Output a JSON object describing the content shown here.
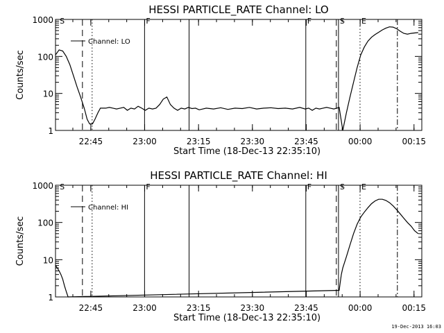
{
  "chart_data": [
    {
      "type": "line",
      "title": "HESSI PARTICLE_RATE Channel: LO",
      "xlabel": "Start Time (18-Dec-13 22:35:10)",
      "ylabel": "Counts/sec",
      "yscale": "log",
      "ylim": [
        1,
        1000
      ],
      "xlim_minutes_since_start": [
        0,
        102
      ],
      "xticks": [
        "22:45",
        "23:00",
        "23:15",
        "23:30",
        "23:45",
        "00:00",
        "00:15"
      ],
      "xtick_minutes": [
        9.83,
        24.83,
        39.83,
        54.83,
        69.83,
        84.83,
        99.83
      ],
      "yticks": [
        "1",
        "10",
        "100",
        "1000"
      ],
      "ytick_values": [
        1,
        10,
        100,
        1000
      ],
      "grid": false,
      "legend": {
        "location": "top-left",
        "label": "Channel: LO"
      },
      "series": [
        {
          "name": "Channel: LO",
          "x": [
            0,
            1,
            2,
            3,
            4,
            5,
            6,
            7,
            8,
            8.8,
            9.5,
            10.3,
            11.0,
            11.8,
            12.5,
            13.3,
            14.0,
            15.0,
            16.0,
            17.0,
            18.0,
            19.0,
            20.0,
            21.0,
            22.0,
            23.0,
            24.0,
            25.0,
            26.0,
            27.0,
            28.0,
            29.0,
            30.0,
            31.0,
            32.0,
            33.0,
            34.0,
            35.0,
            36.0,
            37.0,
            38.0,
            39.0,
            40.0,
            42,
            44,
            46,
            48,
            50,
            52,
            54,
            56,
            58,
            60,
            62,
            64,
            66,
            68,
            69.5,
            70.5,
            71.5,
            72.5,
            73.5,
            74.5,
            75.5,
            76.5,
            77.5,
            78.3,
            79.0,
            80,
            81,
            82,
            83,
            84,
            85,
            86,
            87,
            88,
            89,
            90,
            91,
            92,
            93,
            94,
            95,
            96,
            97,
            98,
            99,
            100,
            101
          ],
          "y": [
            110,
            150,
            140,
            100,
            60,
            30,
            15,
            8,
            4,
            2,
            1.5,
            1.5,
            2,
            3,
            4,
            4,
            4,
            4.2,
            4,
            3.8,
            4,
            4.2,
            3.5,
            4,
            3.8,
            4.5,
            4,
            3.5,
            4,
            3.8,
            4,
            5,
            7,
            8,
            5,
            4,
            3.5,
            4,
            3.8,
            4.2,
            3.9,
            4,
            3.6,
            4,
            3.8,
            4.1,
            3.7,
            4,
            3.9,
            4.2,
            3.8,
            4,
            4.1,
            3.9,
            4,
            3.8,
            4.2,
            3.8,
            4,
            3.5,
            4,
            3.8,
            4,
            4.2,
            4,
            3.8,
            4,
            4.2,
            1,
            3,
            8,
            20,
            50,
            110,
            180,
            260,
            330,
            390,
            450,
            520,
            580,
            630,
            620,
            560,
            480,
            420,
            400,
            420,
            430,
            440
          ]
        }
      ],
      "vertical_markers": [
        {
          "label": "S",
          "minute": 0.8,
          "style": "none"
        },
        {
          "label": "",
          "minute": 7.5,
          "style": "dashed"
        },
        {
          "label": "",
          "minute": 10.2,
          "style": "dotted"
        },
        {
          "label": "F",
          "minute": 24.8,
          "style": "solid"
        },
        {
          "label": "",
          "minute": 37.2,
          "style": "solid"
        },
        {
          "label": "F",
          "minute": 69.7,
          "style": "solid"
        },
        {
          "label": "",
          "minute": 78.2,
          "style": "dashed"
        },
        {
          "label": "S",
          "minute": 78.8,
          "style": "solid"
        },
        {
          "label": "E",
          "minute": 84.8,
          "style": "dotted"
        },
        {
          "label": "",
          "minute": 95.2,
          "style": "dashdot"
        }
      ]
    },
    {
      "type": "line",
      "title": "HESSI PARTICLE_RATE Channel: HI",
      "xlabel": "Start Time (18-Dec-13 22:35:10)",
      "ylabel": "Counts/sec",
      "yscale": "log",
      "ylim": [
        1,
        1000
      ],
      "xlim_minutes_since_start": [
        0,
        102
      ],
      "xticks": [
        "22:45",
        "23:00",
        "23:15",
        "23:30",
        "23:45",
        "00:00",
        "00:15"
      ],
      "xtick_minutes": [
        9.83,
        24.83,
        39.83,
        54.83,
        69.83,
        84.83,
        99.83
      ],
      "yticks": [
        "1",
        "10",
        "100",
        "1000"
      ],
      "ytick_values": [
        1,
        10,
        100,
        1000
      ],
      "grid": false,
      "legend": {
        "location": "top-left",
        "label": "Channel: HI"
      },
      "series": [
        {
          "name": "Channel: HI",
          "x": [
            0,
            0.5,
            1.0,
            1.5,
            2.0,
            2.5,
            3.0,
            3.5,
            79.0,
            79.3,
            79.6,
            80,
            81,
            82,
            83,
            84,
            85,
            86,
            87,
            88,
            89,
            90,
            91,
            92,
            93,
            94,
            95,
            96,
            97,
            98,
            99,
            100,
            101
          ],
          "y": [
            7,
            6,
            5,
            4,
            3,
            2,
            1.4,
            1,
            1.5,
            2.5,
            4,
            6,
            12,
            25,
            50,
            90,
            140,
            190,
            250,
            320,
            380,
            420,
            420,
            390,
            340,
            280,
            220,
            170,
            130,
            100,
            80,
            60,
            50
          ]
        }
      ],
      "vertical_markers": [
        {
          "label": "S",
          "minute": 0.8,
          "style": "none"
        },
        {
          "label": "",
          "minute": 7.5,
          "style": "dashed"
        },
        {
          "label": "",
          "minute": 10.2,
          "style": "dotted"
        },
        {
          "label": "F",
          "minute": 24.8,
          "style": "solid"
        },
        {
          "label": "",
          "minute": 37.2,
          "style": "solid"
        },
        {
          "label": "F",
          "minute": 69.7,
          "style": "solid"
        },
        {
          "label": "",
          "minute": 78.2,
          "style": "dashed"
        },
        {
          "label": "S",
          "minute": 78.8,
          "style": "solid"
        },
        {
          "label": "E",
          "minute": 84.8,
          "style": "dotted"
        },
        {
          "label": "",
          "minute": 95.2,
          "style": "dashdot"
        }
      ]
    }
  ],
  "footer": {
    "timestamp": "19-Dec-2013 16:03"
  }
}
